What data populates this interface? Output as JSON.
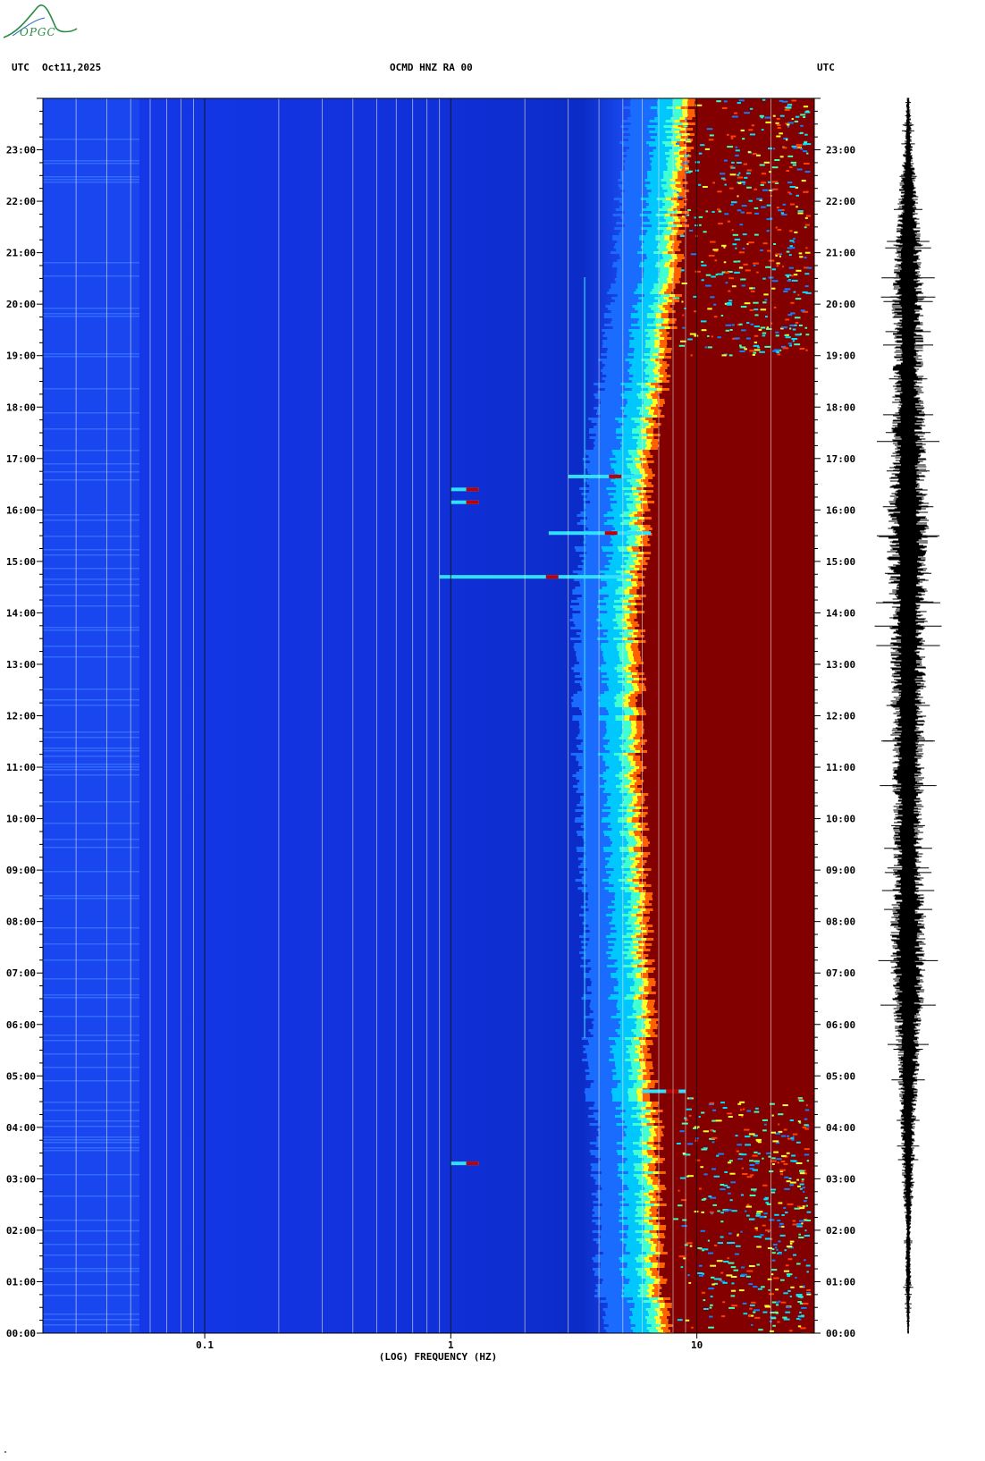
{
  "header": {
    "left_utc": "UTC",
    "date": "Oct11,2025",
    "station": "OCMD HNZ RA 00",
    "right_utc": "UTC"
  },
  "logo": {
    "text": "OPGC",
    "color": "#2a8c45"
  },
  "footer": {
    "mark": "\""
  },
  "chart_data": [
    {
      "type": "heatmap",
      "title": "OCMD HNZ RA 00",
      "xlabel": "(LOG) FREQUENCY (HZ)",
      "ylabel": "",
      "x_scale": "log",
      "xlim": [
        0.022,
        30
      ],
      "x_ticks": [
        0.1,
        1,
        10
      ],
      "x_tick_labels": [
        "0.1",
        "1",
        "10"
      ],
      "ylim": [
        0,
        24
      ],
      "y_unit": "hours UTC",
      "y_tick_labels": [
        "00:00",
        "01:00",
        "02:00",
        "03:00",
        "04:00",
        "05:00",
        "06:00",
        "07:00",
        "08:00",
        "09:00",
        "10:00",
        "11:00",
        "12:00",
        "13:00",
        "14:00",
        "15:00",
        "16:00",
        "17:00",
        "18:00",
        "19:00",
        "20:00",
        "21:00",
        "22:00",
        "23:00"
      ],
      "colormap": [
        "#00007f",
        "#0000ff",
        "#00bfff",
        "#00ffff",
        "#ffff00",
        "#ff7f00",
        "#ff0000",
        "#800000"
      ],
      "colors": {
        "background": "#1030e0",
        "saturated": "#800000",
        "gridline": "#e0e0e0"
      },
      "high_energy_onset_hz_by_hour": [
        {
          "hour": 0,
          "hz": 7.5
        },
        {
          "hour": 2,
          "hz": 7.0
        },
        {
          "hour": 4,
          "hz": 7.0
        },
        {
          "hour": 5,
          "hz": 6.5
        },
        {
          "hour": 6,
          "hz": 6.5
        },
        {
          "hour": 8,
          "hz": 6.2
        },
        {
          "hour": 10,
          "hz": 6.0
        },
        {
          "hour": 12,
          "hz": 5.8
        },
        {
          "hour": 14,
          "hz": 5.8
        },
        {
          "hour": 16,
          "hz": 6.2
        },
        {
          "hour": 17,
          "hz": 6.5
        },
        {
          "hour": 19,
          "hz": 7.5
        },
        {
          "hour": 21,
          "hz": 8.5
        },
        {
          "hour": 23,
          "hz": 9.0
        },
        {
          "hour": 24,
          "hz": 9.5
        }
      ],
      "annotations": [
        {
          "kind": "event-streak",
          "hour": 14.7,
          "hz_from": 0.9,
          "hz_to": 5.5
        },
        {
          "kind": "event-streak",
          "hour": 15.55,
          "hz_from": 2.5,
          "hz_to": 6.5
        },
        {
          "kind": "event-streak",
          "hour": 16.15,
          "hz_from": 1.0,
          "hz_to": 1.3
        },
        {
          "kind": "event-streak",
          "hour": 16.4,
          "hz_from": 1.0,
          "hz_to": 1.3
        },
        {
          "kind": "event-streak",
          "hour": 16.65,
          "hz_from": 3.0,
          "hz_to": 6.0
        },
        {
          "kind": "event-streak",
          "hour": 4.7,
          "hz_from": 6.0,
          "hz_to": 9.0
        },
        {
          "kind": "event-streak",
          "hour": 3.3,
          "hz_from": 1.0,
          "hz_to": 1.3
        },
        {
          "kind": "spectral-line",
          "hz": 3.5
        }
      ]
    },
    {
      "type": "line",
      "title": "",
      "xlabel": "",
      "ylabel": "",
      "ylim": [
        0,
        24
      ],
      "y_unit": "hours UTC",
      "description_values": "seismogram trace, amplitude envelope per hour",
      "amplitude_envelope": [
        {
          "hour": 0,
          "amp": 0.03
        },
        {
          "hour": 1,
          "amp": 0.1
        },
        {
          "hour": 2,
          "amp": 0.08
        },
        {
          "hour": 3,
          "amp": 0.2
        },
        {
          "hour": 4,
          "amp": 0.25
        },
        {
          "hour": 5,
          "amp": 0.35
        },
        {
          "hour": 6,
          "amp": 0.45
        },
        {
          "hour": 7,
          "amp": 0.6
        },
        {
          "hour": 8,
          "amp": 0.6
        },
        {
          "hour": 9,
          "amp": 0.5
        },
        {
          "hour": 10,
          "amp": 0.5
        },
        {
          "hour": 11,
          "amp": 0.55
        },
        {
          "hour": 12,
          "amp": 0.6
        },
        {
          "hour": 13,
          "amp": 0.6
        },
        {
          "hour": 14,
          "amp": 0.65
        },
        {
          "hour": 15,
          "amp": 0.7
        },
        {
          "hour": 16,
          "amp": 0.7
        },
        {
          "hour": 17,
          "amp": 0.6
        },
        {
          "hour": 18,
          "amp": 0.55
        },
        {
          "hour": 19,
          "amp": 0.5
        },
        {
          "hour": 20,
          "amp": 0.55
        },
        {
          "hour": 21,
          "amp": 0.45
        },
        {
          "hour": 22,
          "amp": 0.35
        },
        {
          "hour": 23,
          "amp": 0.15
        },
        {
          "hour": 24,
          "amp": 0.05
        }
      ],
      "color": "#000000"
    }
  ]
}
